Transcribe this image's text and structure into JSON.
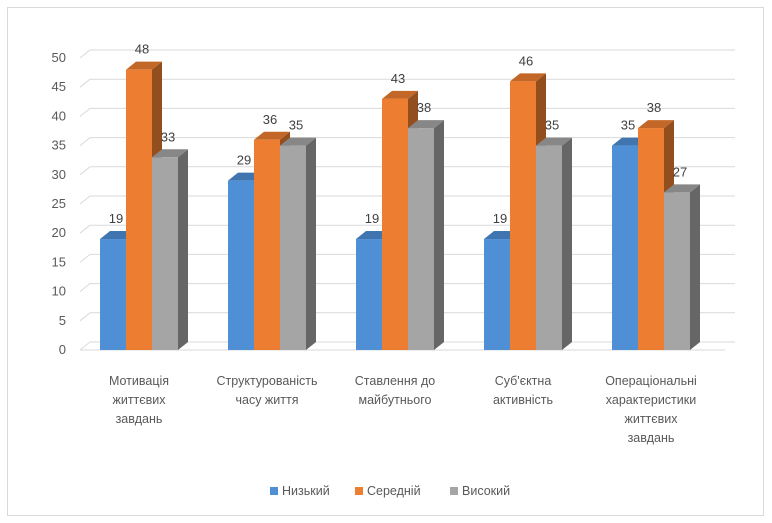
{
  "chart_data": {
    "type": "bar",
    "style": "3d-clustered-column",
    "categories": [
      [
        "Мотивація",
        "життєвих",
        "завдань"
      ],
      [
        "Структурованість",
        "часу життя"
      ],
      [
        "Ставлення до",
        "майбутнього"
      ],
      [
        "Суб'єктна",
        "активність"
      ],
      [
        "Операціональні",
        "характеристики",
        "життєвих",
        "завдань"
      ]
    ],
    "series": [
      {
        "name": "Низький",
        "color": "#4f8fd6",
        "values": [
          19,
          29,
          19,
          19,
          35
        ]
      },
      {
        "name": "Середній",
        "color": "#ed7d31",
        "values": [
          48,
          36,
          43,
          46,
          38
        ]
      },
      {
        "name": "Високий",
        "color": "#a5a5a5",
        "values": [
          33,
          35,
          38,
          35,
          27
        ]
      }
    ],
    "ylim": [
      0,
      50
    ],
    "yticks": [
      0,
      5,
      10,
      15,
      20,
      25,
      30,
      35,
      40,
      45,
      50
    ],
    "grid": true,
    "data_labels": true,
    "legend_position": "bottom"
  }
}
